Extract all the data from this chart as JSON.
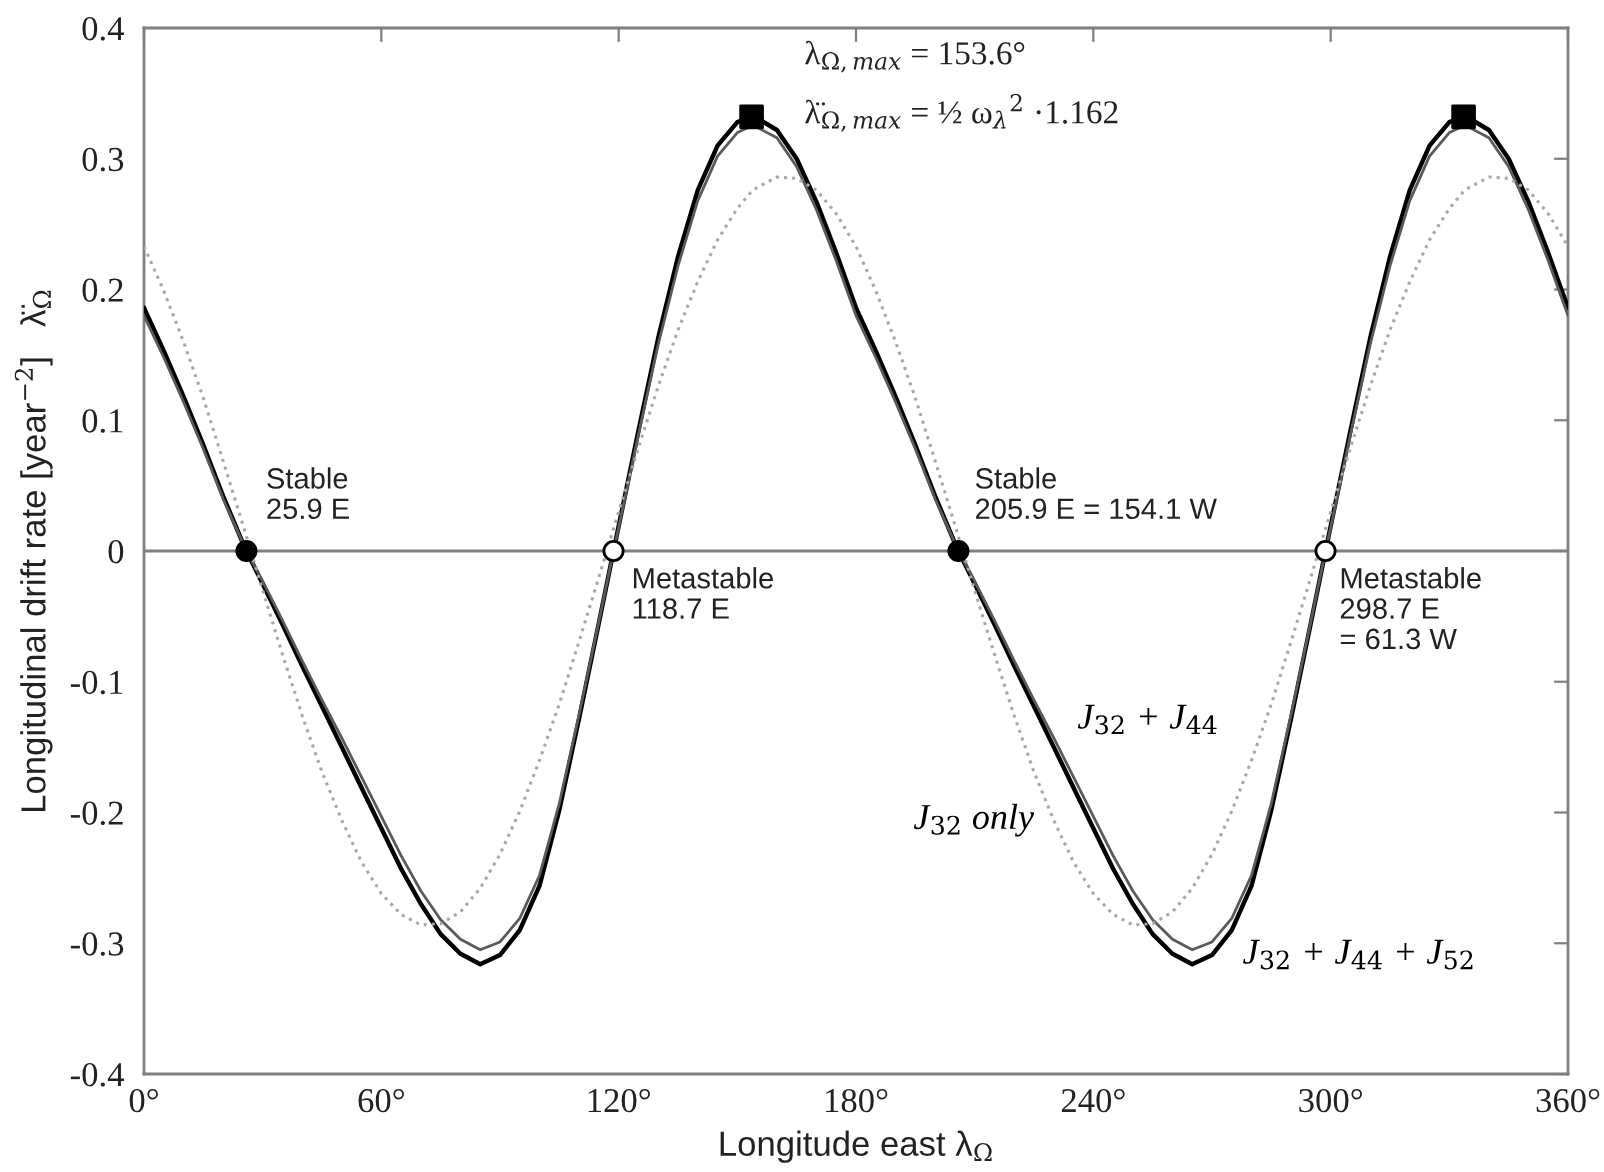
{
  "chart_data": {
    "type": "line",
    "xlabel": "Longitude east λ$_{Ω}$",
    "ylabel": "Longitudinal drift rate [year$^{−2}$]   λ̈$_{Ω}$",
    "x": [
      0,
      5,
      10,
      15,
      20,
      25,
      25.9,
      30,
      35,
      40,
      45,
      50,
      55,
      60,
      65,
      70,
      75,
      80,
      85,
      90,
      95,
      100,
      105,
      110,
      115,
      118.7,
      120,
      125,
      130,
      135,
      140,
      145,
      150,
      153.6,
      155,
      160,
      165,
      170,
      175,
      180,
      185,
      190,
      195,
      200,
      205,
      205.9,
      210,
      215,
      220,
      225,
      230,
      235,
      240,
      245,
      250,
      255,
      260,
      265,
      270,
      275,
      280,
      285,
      290,
      295,
      298.7,
      300,
      305,
      310,
      315,
      320,
      325,
      330,
      333.6,
      335,
      340,
      345,
      350,
      355,
      360
    ],
    "series": [
      {
        "name": "J$_{32}$ + J$_{44}$ + J$_{52}$",
        "color": "#000000",
        "line_style": "solid",
        "values": [
          0.186,
          0.153,
          0.118,
          0.081,
          0.042,
          0.006,
          0,
          -0.025,
          -0.056,
          -0.088,
          -0.119,
          -0.15,
          -0.181,
          -0.212,
          -0.243,
          -0.27,
          -0.293,
          -0.308,
          -0.316,
          -0.309,
          -0.29,
          -0.256,
          -0.198,
          -0.128,
          -0.055,
          0,
          0.019,
          0.092,
          0.163,
          0.225,
          0.276,
          0.31,
          0.328,
          0.332,
          0.331,
          0.322,
          0.3,
          0.267,
          0.228,
          0.186,
          0.153,
          0.118,
          0.081,
          0.042,
          0.006,
          0,
          -0.025,
          -0.056,
          -0.088,
          -0.119,
          -0.15,
          -0.181,
          -0.212,
          -0.243,
          -0.27,
          -0.293,
          -0.308,
          -0.316,
          -0.309,
          -0.29,
          -0.256,
          -0.198,
          -0.128,
          -0.055,
          0,
          0.019,
          0.092,
          0.163,
          0.225,
          0.276,
          0.31,
          0.328,
          0.332,
          0.331,
          0.322,
          0.3,
          0.267,
          0.228,
          0.186
        ]
      },
      {
        "name": "J$_{32}$ + J$_{44}$",
        "color": "#5a5a5a",
        "line_style": "solid",
        "values": [
          0.18,
          0.148,
          0.114,
          0.078,
          0.04,
          0.006,
          0,
          -0.023,
          -0.053,
          -0.084,
          -0.114,
          -0.143,
          -0.173,
          -0.203,
          -0.233,
          -0.26,
          -0.282,
          -0.297,
          -0.305,
          -0.299,
          -0.281,
          -0.248,
          -0.193,
          -0.125,
          -0.054,
          0,
          0.018,
          0.089,
          0.158,
          0.218,
          0.268,
          0.302,
          0.32,
          0.325,
          0.324,
          0.316,
          0.294,
          0.261,
          0.222,
          0.18,
          0.148,
          0.114,
          0.078,
          0.04,
          0.006,
          0,
          -0.023,
          -0.053,
          -0.084,
          -0.114,
          -0.143,
          -0.173,
          -0.203,
          -0.233,
          -0.26,
          -0.282,
          -0.297,
          -0.305,
          -0.299,
          -0.281,
          -0.248,
          -0.193,
          -0.125,
          -0.054,
          0,
          0.018,
          0.089,
          0.158,
          0.218,
          0.268,
          0.302,
          0.32,
          0.325,
          0.324,
          0.316,
          0.294,
          0.261,
          0.222,
          0.18
        ]
      },
      {
        "name": "J$_{32}$ only",
        "color": "#a8a8a8",
        "line_style": "dotted",
        "values": [
          0.233,
          0.199,
          0.16,
          0.117,
          0.069,
          0.02,
          0.011,
          -0.03,
          -0.079,
          -0.126,
          -0.169,
          -0.206,
          -0.238,
          -0.262,
          -0.278,
          -0.286,
          -0.285,
          -0.276,
          -0.258,
          -0.232,
          -0.199,
          -0.16,
          -0.117,
          -0.069,
          -0.02,
          0.017,
          0.03,
          0.079,
          0.126,
          0.169,
          0.206,
          0.238,
          0.262,
          0.275,
          0.278,
          0.286,
          0.285,
          0.276,
          0.258,
          0.233,
          0.199,
          0.16,
          0.117,
          0.069,
          0.02,
          0.011,
          -0.03,
          -0.079,
          -0.126,
          -0.169,
          -0.206,
          -0.238,
          -0.262,
          -0.278,
          -0.286,
          -0.285,
          -0.276,
          -0.258,
          -0.232,
          -0.199,
          -0.16,
          -0.117,
          -0.069,
          -0.02,
          0.017,
          0.03,
          0.079,
          0.126,
          0.169,
          0.206,
          0.238,
          0.262,
          0.275,
          0.278,
          0.286,
          0.285,
          0.276,
          0.258,
          0.233
        ]
      },
      {
        "type": "scatter",
        "marker": "circle",
        "color": "#000000",
        "x": [
          25.9,
          205.9
        ],
        "values": [
          0,
          0
        ]
      },
      {
        "type": "scatter",
        "marker": "circle",
        "color": "#ffffff",
        "x": [
          118.7,
          298.7
        ],
        "values": [
          0,
          0
        ]
      },
      {
        "type": "scatter",
        "marker": "square",
        "color": "#000000",
        "x": [
          153.6,
          333.6
        ],
        "values": [
          0.332,
          0.332
        ]
      }
    ],
    "xlim": [
      0,
      360
    ],
    "xticks": [
      {
        "value": 0,
        "label": "0°"
      },
      {
        "value": 60,
        "label": "60°"
      },
      {
        "value": 120,
        "label": "120°"
      },
      {
        "value": 180,
        "label": "180°"
      },
      {
        "value": 240,
        "label": "240°"
      },
      {
        "value": 300,
        "label": "300°"
      },
      {
        "value": 360,
        "label": "360°"
      }
    ],
    "ylim": [
      -0.4,
      0.4
    ],
    "yticks": [
      -0.4,
      -0.3,
      -0.2,
      -0.1,
      0,
      0.1,
      0.2,
      0.3,
      0.4
    ],
    "ref_lines": [
      {
        "axis": "y",
        "value": 0,
        "color": "#808080"
      }
    ],
    "annotations": [
      {
        "text": "Stable\n25.9 E",
        "x": 25.9,
        "y": 0
      },
      {
        "text": "Metastable\n118.7 E",
        "x": 118.7,
        "y": 0
      },
      {
        "text": "λ$_{Ω,max}$ = 153.6°",
        "x": 153.6,
        "y": 0.332
      },
      {
        "text": "λ̈$_{Ω,max}$ = ½ ω$_{λ}$$^{2}$ ·1.162",
        "x": 153.6,
        "y": 0.332
      },
      {
        "text": "Stable\n205.9 E = 154.1 W",
        "x": 205.9,
        "y": 0
      },
      {
        "text": "Metastable\n298.7 E\n= 61.3 W",
        "x": 298.7,
        "y": 0
      }
    ]
  }
}
